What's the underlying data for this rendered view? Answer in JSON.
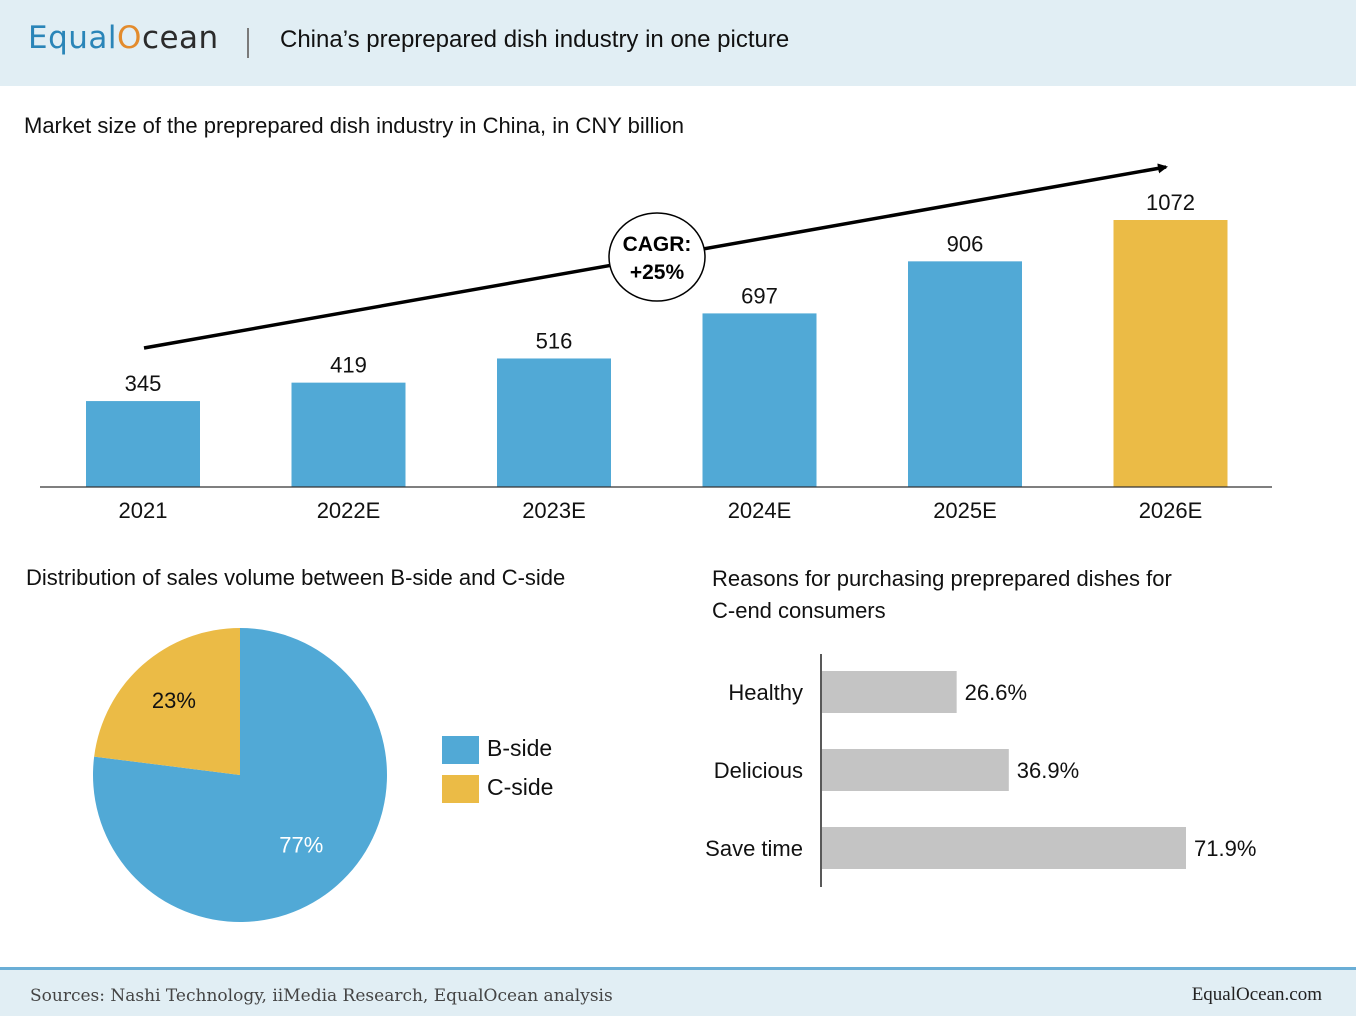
{
  "header": {
    "logo": {
      "part1": "Equal",
      "part2": "O",
      "part3": "cean"
    },
    "title": "China’s preprepared dish industry in one picture"
  },
  "colors": {
    "blue": "#51a9d6",
    "gold": "#ebbb46",
    "gray": "#c4c4c4",
    "header_bg": "#e1eef4"
  },
  "sections": {
    "market_title": "Market size of the preprepared dish industry in China, in CNY billion",
    "distribution_title": "Distribution of sales volume between B-side and C-side",
    "reasons_title_line1": "Reasons for purchasing preprepared dishes for",
    "reasons_title_line2": "C-end consumers"
  },
  "cagr": {
    "line1": "CAGR:",
    "line2": "+25%"
  },
  "chart_data": [
    {
      "type": "bar",
      "title": "Market size of the preprepared dish industry in China, in CNY billion",
      "categories": [
        "2021",
        "2022E",
        "2023E",
        "2024E",
        "2025E",
        "2026E"
      ],
      "values": [
        345,
        419,
        516,
        697,
        906,
        1072
      ],
      "colors": [
        "#51a9d6",
        "#51a9d6",
        "#51a9d6",
        "#51a9d6",
        "#51a9d6",
        "#ebbb46"
      ],
      "data_labels": [
        "345",
        "419",
        "516",
        "697",
        "906",
        "1072"
      ],
      "ylim": [
        0,
        1072
      ]
    },
    {
      "type": "pie",
      "title": "Distribution of sales volume between B-side and C-side",
      "series": [
        {
          "name": "B-side",
          "value": 77,
          "label": "77%",
          "color": "#51a9d6"
        },
        {
          "name": "C-side",
          "value": 23,
          "label": "23%",
          "color": "#ebbb46"
        }
      ],
      "legend": "right"
    },
    {
      "type": "bar",
      "orientation": "horizontal",
      "title": "Reasons for purchasing preprepared dishes for C-end consumers",
      "categories": [
        "Healthy",
        "Delicious",
        "Save time"
      ],
      "values": [
        26.6,
        36.9,
        71.9
      ],
      "data_labels": [
        "26.6%",
        "36.9%",
        "71.9%"
      ],
      "color": "#c4c4c4"
    }
  ],
  "footer": {
    "sources": "Sources: Nashi Technology, iiMedia Research, EqualOcean analysis",
    "brand": "EqualOcean.com"
  }
}
